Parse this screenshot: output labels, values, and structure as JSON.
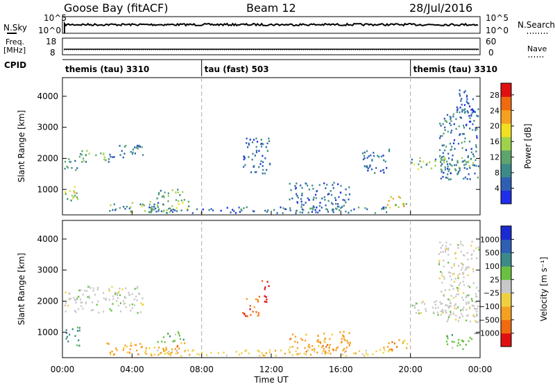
{
  "header": {
    "station": "Goose Bay (fitACF)",
    "beam": "Beam 12",
    "date": "28/Jul/2016"
  },
  "nsky_panel": {
    "label": "N.Sky",
    "right_label": "N.Search",
    "y_top": "10^5",
    "y_bottom": "10^0",
    "right_top": "10^5",
    "right_bottom": "10^0",
    "level_fraction": 0.52
  },
  "freq_panel": {
    "label_top": "Freq.",
    "label_bottom": "[MHz]",
    "right_label": "Nave",
    "y_top": "18",
    "y_bottom": "8",
    "right_top": "60",
    "right_bottom": "0"
  },
  "cpid_panel": {
    "label": "CPID",
    "segments": [
      {
        "text": "themis (tau) 3310",
        "start": 0,
        "end": 8
      },
      {
        "text": "tau (fast) 503",
        "start": 8,
        "end": 20
      },
      {
        "text": "themis (tau) 3310",
        "start": 20,
        "end": 24
      }
    ]
  },
  "colors": {
    "power": [
      "#1f2ee8",
      "#2f5fb5",
      "#3c8a8a",
      "#5da56a",
      "#9fd24a",
      "#f0e020",
      "#f5a020",
      "#f06a10",
      "#e01010"
    ],
    "velocity": [
      "#e01010",
      "#f06a10",
      "#f5a020",
      "#f0d040",
      "#c8c8c8",
      "#6ac040",
      "#3c8a8a",
      "#2f5fb5",
      "#1a2ad0"
    ]
  },
  "chart_data": [
    {
      "type": "heatmap",
      "ylabel": "Slant Range [km]",
      "xlabel": "Time UT",
      "xlim": [
        0,
        24
      ],
      "ylim": [
        180,
        4600
      ],
      "xticks": [
        "00:00",
        "04:00",
        "08:00",
        "12:00",
        "16:00",
        "20:00",
        "00:00"
      ],
      "yticks": [
        "1000",
        "2000",
        "3000",
        "4000"
      ],
      "colorbar": {
        "label": "Power [dB]",
        "ticks": [
          "4",
          "8",
          "12",
          "16",
          "20",
          "24",
          "28"
        ],
        "range": [
          0,
          31
        ]
      },
      "regions": [
        {
          "t0": 0.1,
          "t1": 1.1,
          "r0": 1600,
          "r1": 2000,
          "v0": 4,
          "v1": 14
        },
        {
          "t0": 0.9,
          "t1": 2.7,
          "r0": 1850,
          "r1": 2250,
          "v0": 6,
          "v1": 16
        },
        {
          "t0": 2.6,
          "t1": 4.6,
          "r0": 2000,
          "r1": 2450,
          "v0": 3,
          "v1": 12
        },
        {
          "t0": 0.1,
          "t1": 1.0,
          "r0": 550,
          "r1": 1150,
          "v0": 8,
          "v1": 22
        },
        {
          "t0": 2.5,
          "t1": 7.3,
          "r0": 250,
          "r1": 650,
          "v0": 4,
          "v1": 18
        },
        {
          "t0": 5.4,
          "t1": 7.0,
          "r0": 650,
          "r1": 1000,
          "v0": 6,
          "v1": 16
        },
        {
          "t0": 4.5,
          "t1": 19.0,
          "r0": 220,
          "r1": 420,
          "v0": 2,
          "v1": 12
        },
        {
          "t0": 10.3,
          "t1": 11.9,
          "r0": 1500,
          "r1": 2650,
          "v0": 2,
          "v1": 10
        },
        {
          "t0": 13.0,
          "t1": 16.5,
          "r0": 250,
          "r1": 1200,
          "v0": 2,
          "v1": 10
        },
        {
          "t0": 17.2,
          "t1": 18.8,
          "r0": 1500,
          "r1": 2300,
          "v0": 2,
          "v1": 10
        },
        {
          "t0": 18.4,
          "t1": 19.8,
          "r0": 380,
          "r1": 750,
          "v0": 12,
          "v1": 26
        },
        {
          "t0": 19.9,
          "t1": 23.9,
          "r0": 1600,
          "r1": 2000,
          "v0": 5,
          "v1": 18
        },
        {
          "t0": 21.6,
          "t1": 23.9,
          "r0": 1300,
          "r1": 3600,
          "v0": 2,
          "v1": 12
        },
        {
          "t0": 22.6,
          "t1": 23.7,
          "r0": 3200,
          "r1": 4200,
          "v0": 2,
          "v1": 8
        }
      ]
    },
    {
      "type": "heatmap",
      "ylabel": "Slant Range [km]",
      "xlabel": "Time UT",
      "xlim": [
        0,
        24
      ],
      "ylim": [
        180,
        4600
      ],
      "xticks": [
        "00:00",
        "04:00",
        "08:00",
        "12:00",
        "16:00",
        "20:00",
        "00:00"
      ],
      "yticks": [
        "1000",
        "2000",
        "3000",
        "4000"
      ],
      "colorbar": {
        "label": "Velocity [m s⁻¹]",
        "ticks": [
          "1000",
          "500",
          "100",
          "25",
          "−25",
          "−100",
          "−500",
          "−1000"
        ]
      },
      "regions": [
        {
          "t0": 0.1,
          "t1": 4.6,
          "r0": 1600,
          "r1": 2450,
          "class": 4
        },
        {
          "t0": 0.1,
          "t1": 1.0,
          "r0": 550,
          "r1": 1150,
          "class": 6
        },
        {
          "t0": 2.5,
          "t1": 7.3,
          "r0": 250,
          "r1": 650,
          "class": 2
        },
        {
          "t0": 5.4,
          "t1": 7.0,
          "r0": 650,
          "r1": 1000,
          "class": 5
        },
        {
          "t0": 4.5,
          "t1": 19.0,
          "r0": 220,
          "r1": 420,
          "class": 3
        },
        {
          "t0": 11.4,
          "t1": 11.9,
          "r0": 1950,
          "r1": 2650,
          "class": 0
        },
        {
          "t0": 10.3,
          "t1": 11.3,
          "r0": 1500,
          "r1": 2200,
          "class": 1
        },
        {
          "t0": 13.0,
          "t1": 16.5,
          "r0": 250,
          "r1": 1000,
          "class": 2
        },
        {
          "t0": 18.4,
          "t1": 19.8,
          "r0": 380,
          "r1": 750,
          "class": 2
        },
        {
          "t0": 19.9,
          "t1": 23.9,
          "r0": 1500,
          "r1": 2000,
          "class": 4
        },
        {
          "t0": 21.6,
          "t1": 23.9,
          "r0": 1300,
          "r1": 3900,
          "class": 4
        },
        {
          "t0": 22.0,
          "t1": 23.5,
          "r0": 400,
          "r1": 900,
          "class": 5
        }
      ]
    }
  ]
}
